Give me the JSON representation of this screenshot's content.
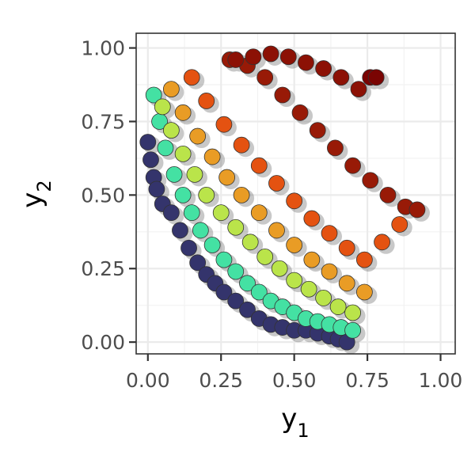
{
  "chart_data": {
    "type": "scatter",
    "title": "",
    "xlabel": {
      "base": "y",
      "sub": "1"
    },
    "ylabel": {
      "base": "y",
      "sub": "2"
    },
    "xlim": [
      -0.04,
      1.05
    ],
    "ylim": [
      -0.04,
      1.05
    ],
    "x_ticks": [
      0,
      0.25,
      0.5,
      0.75,
      1
    ],
    "y_ticks": [
      0,
      0.25,
      0.5,
      0.75,
      1
    ],
    "x_tick_labels": [
      "0.00",
      "0.25",
      "0.50",
      "0.75",
      "1.00"
    ],
    "y_tick_labels": [
      "0.00",
      "0.25",
      "0.50",
      "0.75",
      "1.00"
    ],
    "grid": true,
    "legend": "none",
    "colormap": [
      "#30123b",
      "#3e9bfe",
      "#46f884",
      "#e1dd37",
      "#f05b12",
      "#7a0403"
    ],
    "shadow_color": "#4d4d4d",
    "series": [
      {
        "x": [
          0.0,
          0.01,
          0.02,
          0.03,
          0.05,
          0.08,
          0.11,
          0.14,
          0.17,
          0.2,
          0.23,
          0.26,
          0.3,
          0.34,
          0.38,
          0.42,
          0.46,
          0.5,
          0.54,
          0.58,
          0.62,
          0.65,
          0.68
        ],
        "y": [
          0.68,
          0.62,
          0.56,
          0.52,
          0.47,
          0.44,
          0.38,
          0.32,
          0.27,
          0.23,
          0.2,
          0.17,
          0.14,
          0.11,
          0.08,
          0.06,
          0.05,
          0.04,
          0.04,
          0.03,
          0.02,
          0.01,
          0.0
        ],
        "z": [
          0.05,
          0.05,
          0.05,
          0.05,
          0.05,
          0.05,
          0.05,
          0.05,
          0.05,
          0.05,
          0.05,
          0.05,
          0.05,
          0.05,
          0.05,
          0.05,
          0.05,
          0.05,
          0.05,
          0.05,
          0.05,
          0.05,
          0.05
        ]
      },
      {
        "x": [
          0.02,
          0.04,
          0.06,
          0.09,
          0.12,
          0.15,
          0.18,
          0.22,
          0.26,
          0.3,
          0.34,
          0.38,
          0.42,
          0.46,
          0.5,
          0.54,
          0.58,
          0.62,
          0.66,
          0.7
        ],
        "y": [
          0.84,
          0.75,
          0.66,
          0.57,
          0.5,
          0.44,
          0.38,
          0.33,
          0.28,
          0.24,
          0.2,
          0.17,
          0.14,
          0.12,
          0.1,
          0.08,
          0.07,
          0.06,
          0.05,
          0.04
        ],
        "z": [
          0.35,
          0.35,
          0.35,
          0.35,
          0.35,
          0.35,
          0.35,
          0.35,
          0.35,
          0.35,
          0.35,
          0.35,
          0.35,
          0.35,
          0.35,
          0.35,
          0.35,
          0.35,
          0.35,
          0.35
        ]
      },
      {
        "x": [
          0.05,
          0.08,
          0.12,
          0.16,
          0.2,
          0.25,
          0.3,
          0.35,
          0.4,
          0.45,
          0.5,
          0.55,
          0.6,
          0.65,
          0.7
        ],
        "y": [
          0.8,
          0.72,
          0.64,
          0.57,
          0.5,
          0.44,
          0.39,
          0.34,
          0.29,
          0.25,
          0.21,
          0.18,
          0.15,
          0.12,
          0.1
        ],
        "z": [
          0.55,
          0.55,
          0.55,
          0.55,
          0.55,
          0.55,
          0.55,
          0.55,
          0.55,
          0.55,
          0.55,
          0.55,
          0.55,
          0.55,
          0.55
        ]
      },
      {
        "x": [
          0.08,
          0.12,
          0.17,
          0.22,
          0.27,
          0.32,
          0.38,
          0.44,
          0.5,
          0.56,
          0.62,
          0.68,
          0.74
        ],
        "y": [
          0.86,
          0.78,
          0.7,
          0.63,
          0.56,
          0.5,
          0.44,
          0.38,
          0.33,
          0.28,
          0.24,
          0.2,
          0.17
        ],
        "z": [
          0.7,
          0.7,
          0.7,
          0.7,
          0.7,
          0.7,
          0.7,
          0.7,
          0.7,
          0.7,
          0.7,
          0.7,
          0.7
        ]
      },
      {
        "x": [
          0.15,
          0.2,
          0.26,
          0.32,
          0.38,
          0.44,
          0.5,
          0.56,
          0.62,
          0.68,
          0.74,
          0.8,
          0.86
        ],
        "y": [
          0.9,
          0.82,
          0.74,
          0.67,
          0.6,
          0.54,
          0.48,
          0.42,
          0.37,
          0.32,
          0.28,
          0.34,
          0.4
        ],
        "z": [
          0.82,
          0.82,
          0.82,
          0.82,
          0.82,
          0.82,
          0.82,
          0.82,
          0.82,
          0.82,
          0.82,
          0.82,
          0.82
        ]
      },
      {
        "x": [
          0.28,
          0.34,
          0.4,
          0.46,
          0.52,
          0.58,
          0.64,
          0.7,
          0.76,
          0.82,
          0.88,
          0.92
        ],
        "y": [
          0.96,
          0.94,
          0.9,
          0.84,
          0.78,
          0.72,
          0.66,
          0.6,
          0.55,
          0.5,
          0.46,
          0.45
        ],
        "z": [
          0.95,
          0.95,
          0.95,
          0.95,
          0.95,
          0.95,
          0.95,
          0.95,
          0.95,
          0.95,
          0.95,
          0.95
        ]
      },
      {
        "x": [
          0.3,
          0.36,
          0.42,
          0.48,
          0.54,
          0.6,
          0.66,
          0.72
        ],
        "y": [
          0.96,
          0.97,
          0.98,
          0.97,
          0.95,
          0.93,
          0.9,
          0.86
        ],
        "z": [
          0.97,
          0.97,
          0.97,
          0.97,
          0.97,
          0.97,
          0.97,
          0.97
        ]
      },
      {
        "x": [
          0.76,
          0.78
        ],
        "y": [
          0.9,
          0.9
        ],
        "z": [
          1.0,
          1.0
        ]
      }
    ]
  }
}
